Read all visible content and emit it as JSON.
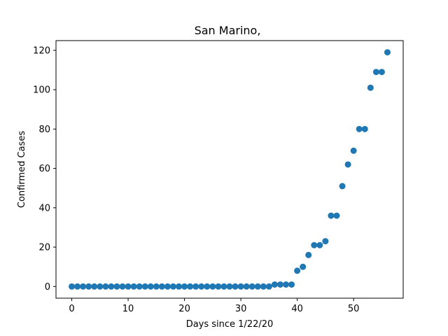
{
  "chart_data": {
    "type": "scatter",
    "title": "San Marino,",
    "xlabel": "Days since 1/22/20",
    "ylabel": "Confirmed Cases",
    "xlim": [
      -2.8,
      58.8
    ],
    "ylim": [
      -5.95,
      124.95
    ],
    "xticks": [
      0,
      10,
      20,
      30,
      40,
      50
    ],
    "yticks": [
      0,
      20,
      40,
      60,
      80,
      100,
      120
    ],
    "grid": false,
    "marker_color": "#1f77b4",
    "series": [
      {
        "name": "Confirmed Cases",
        "x": [
          0,
          1,
          2,
          3,
          4,
          5,
          6,
          7,
          8,
          9,
          10,
          11,
          12,
          13,
          14,
          15,
          16,
          17,
          18,
          19,
          20,
          21,
          22,
          23,
          24,
          25,
          26,
          27,
          28,
          29,
          30,
          31,
          32,
          33,
          34,
          35,
          36,
          37,
          38,
          39,
          40,
          41,
          42,
          43,
          44,
          45,
          46,
          47,
          48,
          49,
          50,
          51,
          52,
          53,
          54,
          55,
          56
        ],
        "y": [
          0,
          0,
          0,
          0,
          0,
          0,
          0,
          0,
          0,
          0,
          0,
          0,
          0,
          0,
          0,
          0,
          0,
          0,
          0,
          0,
          0,
          0,
          0,
          0,
          0,
          0,
          0,
          0,
          0,
          0,
          0,
          0,
          0,
          0,
          0,
          0,
          1,
          1,
          1,
          1,
          8,
          10,
          16,
          21,
          21,
          23,
          36,
          36,
          51,
          62,
          69,
          80,
          80,
          101,
          109,
          109,
          119
        ]
      }
    ]
  }
}
